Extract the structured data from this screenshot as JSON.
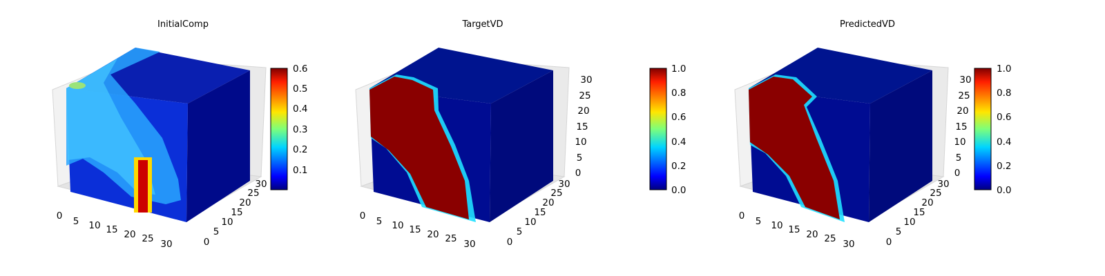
{
  "chart_data": [
    {
      "type": "voxel3d",
      "title": "InitialComp",
      "colormap": "jet",
      "x_ticks": [
        "0",
        "5",
        "10",
        "15",
        "20",
        "25",
        "30"
      ],
      "y_ticks": [
        "0",
        "5",
        "10",
        "15",
        "20",
        "25",
        "30"
      ],
      "z_ticks": [
        "",
        "",
        "",
        "",
        "",
        "",
        ""
      ],
      "grid_size": 32,
      "colorbar": {
        "range": [
          0.02,
          0.6
        ],
        "ticks": [
          "0.1",
          "0.2",
          "0.3",
          "0.4",
          "0.5",
          "0.6"
        ]
      }
    },
    {
      "type": "voxel3d",
      "title": "TargetVD",
      "colormap": "jet",
      "x_ticks": [
        "0",
        "5",
        "10",
        "15",
        "20",
        "25",
        "30"
      ],
      "y_ticks": [
        "0",
        "5",
        "10",
        "15",
        "20",
        "25",
        "30"
      ],
      "z_ticks": [
        "0",
        "5",
        "10",
        "15",
        "20",
        "25",
        "30"
      ],
      "grid_size": 32,
      "colorbar": {
        "range": [
          0.0,
          1.0
        ],
        "ticks": [
          "0.0",
          "0.2",
          "0.4",
          "0.6",
          "0.8",
          "1.0"
        ]
      }
    },
    {
      "type": "voxel3d",
      "title": "PredictedVD",
      "colormap": "jet",
      "x_ticks": [
        "0",
        "5",
        "10",
        "15",
        "20",
        "25",
        "30"
      ],
      "y_ticks": [
        "0",
        "5",
        "10",
        "15",
        "20",
        "25",
        "30"
      ],
      "z_ticks": [
        "0",
        "5",
        "10",
        "15",
        "20",
        "25",
        "30"
      ],
      "grid_size": 32,
      "colorbar": {
        "range": [
          0.0,
          1.0
        ],
        "ticks": [
          "0.0",
          "0.2",
          "0.4",
          "0.6",
          "0.8",
          "1.0"
        ]
      }
    }
  ]
}
